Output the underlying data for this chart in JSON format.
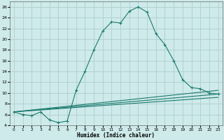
{
  "xlabel": "Humidex (Indice chaleur)",
  "background_color": "#ceeaea",
  "grid_color": "#aecece",
  "line_color": "#1a7a6e",
  "xlim": [
    -0.5,
    23.5
  ],
  "ylim": [
    4,
    27
  ],
  "xticks": [
    0,
    1,
    2,
    3,
    4,
    5,
    6,
    7,
    8,
    9,
    10,
    11,
    12,
    13,
    14,
    15,
    16,
    17,
    18,
    19,
    20,
    21,
    22,
    23
  ],
  "yticks": [
    4,
    6,
    8,
    10,
    12,
    14,
    16,
    18,
    20,
    22,
    24,
    26
  ],
  "series": [
    {
      "x": [
        0,
        1,
        2,
        3,
        4,
        5,
        6,
        7,
        8,
        9,
        10,
        11,
        12,
        13,
        14,
        15,
        16,
        17,
        18,
        19,
        20,
        21,
        22,
        23
      ],
      "y": [
        6.5,
        6.0,
        5.8,
        6.5,
        5.0,
        4.5,
        4.8,
        10.5,
        14.0,
        18.0,
        21.5,
        23.2,
        23.0,
        25.2,
        26.0,
        25.0,
        21.0,
        19.0,
        16.0,
        12.5,
        11.0,
        10.8,
        10.0,
        9.8
      ],
      "marker": "+"
    },
    {
      "x": [
        0,
        23
      ],
      "y": [
        6.5,
        10.5
      ],
      "marker": null
    },
    {
      "x": [
        0,
        23
      ],
      "y": [
        6.5,
        9.8
      ],
      "marker": null
    },
    {
      "x": [
        0,
        23
      ],
      "y": [
        6.5,
        9.2
      ],
      "marker": null
    }
  ]
}
